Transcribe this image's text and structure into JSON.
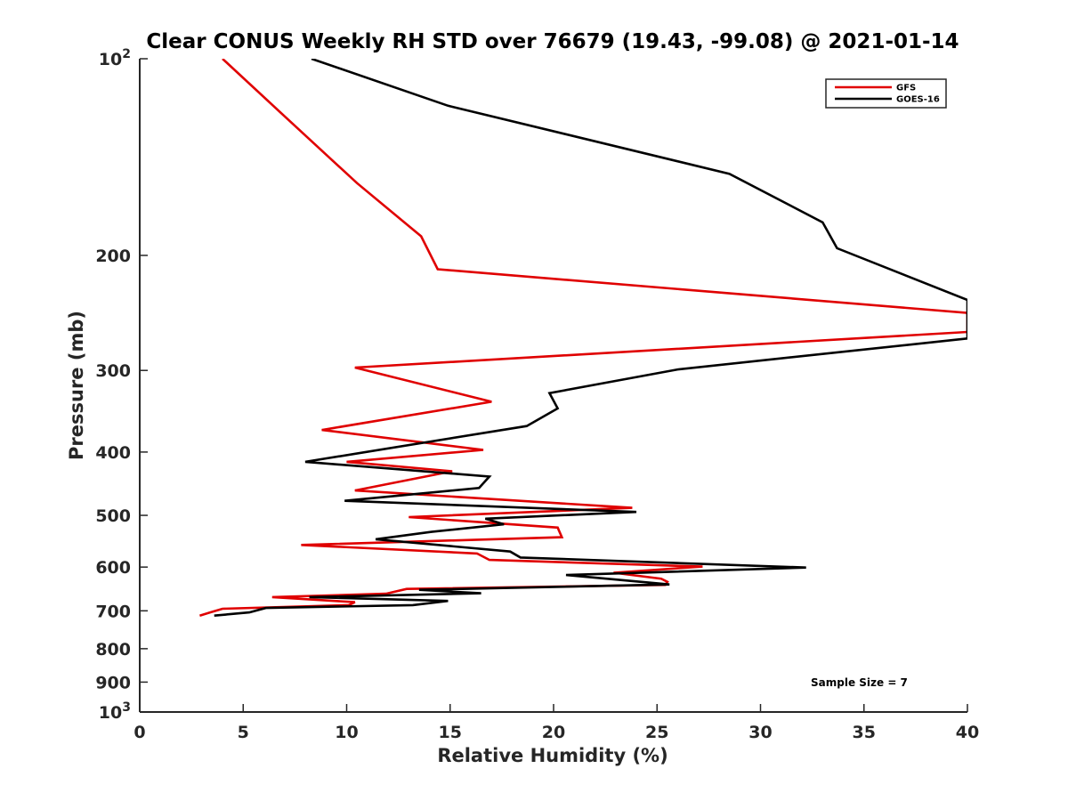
{
  "chart_data": {
    "type": "line",
    "title": "Clear CONUS Weekly RH STD over 76679 (19.43, -99.08) @ 2021-01-14",
    "xlabel": "Relative Humidity (%)",
    "ylabel": "Pressure (mb)",
    "xlim": [
      0,
      40
    ],
    "ylim": [
      100,
      1000
    ],
    "yscale": "log",
    "y_reversed": true,
    "grid": false,
    "legend_position": "top-right",
    "x_ticks": [
      "0",
      "5",
      "10",
      "15",
      "20",
      "25",
      "30",
      "35",
      "40"
    ],
    "y_ticks": [
      {
        "value": 100,
        "base": "10",
        "exp": "2"
      },
      {
        "value": 200,
        "label": "200"
      },
      {
        "value": 300,
        "label": "300"
      },
      {
        "value": 400,
        "label": "400"
      },
      {
        "value": 500,
        "label": "500"
      },
      {
        "value": 600,
        "label": "600"
      },
      {
        "value": 700,
        "label": "700"
      },
      {
        "value": 800,
        "label": "800"
      },
      {
        "value": 900,
        "label": "900"
      },
      {
        "value": 1000,
        "base": "10",
        "exp": "3"
      }
    ],
    "annotation": "Sample Size = 7",
    "series": [
      {
        "name": "GFS",
        "color": "#e00000",
        "points": [
          [
            4.0,
            100
          ],
          [
            7.3,
            125
          ],
          [
            10.5,
            155
          ],
          [
            13.6,
            187
          ],
          [
            14.4,
            210
          ],
          [
            40.0,
            245
          ],
          [
            40.0,
            262
          ],
          [
            10.4,
            297
          ],
          [
            17.0,
            335
          ],
          [
            8.8,
            370
          ],
          [
            16.6,
            397
          ],
          [
            10.0,
            414
          ],
          [
            15.1,
            428
          ],
          [
            10.4,
            458
          ],
          [
            23.8,
            487
          ],
          [
            13.0,
            503
          ],
          [
            20.2,
            522
          ],
          [
            20.4,
            540
          ],
          [
            7.8,
            555
          ],
          [
            16.3,
            572
          ],
          [
            16.9,
            585
          ],
          [
            27.2,
            599
          ],
          [
            22.9,
            612
          ],
          [
            25.2,
            625
          ],
          [
            25.5,
            632
          ],
          [
            25.4,
            639
          ],
          [
            12.9,
            648
          ],
          [
            11.9,
            659
          ],
          [
            6.4,
            667
          ],
          [
            10.4,
            679
          ],
          [
            10.1,
            686
          ],
          [
            4.0,
            695
          ],
          [
            3.4,
            704
          ],
          [
            2.9,
            712
          ]
        ]
      },
      {
        "name": "GOES-16",
        "color": "#000000",
        "points": [
          [
            8.3,
            100
          ],
          [
            14.9,
            118
          ],
          [
            28.5,
            150
          ],
          [
            33.0,
            178
          ],
          [
            33.7,
            195
          ],
          [
            40.0,
            234
          ],
          [
            40.0,
            268
          ],
          [
            26.0,
            299
          ],
          [
            19.8,
            325
          ],
          [
            20.2,
            343
          ],
          [
            18.7,
            365
          ],
          [
            8.0,
            414
          ],
          [
            16.9,
            436
          ],
          [
            16.4,
            454
          ],
          [
            9.9,
            475
          ],
          [
            24.0,
            494
          ],
          [
            16.7,
            506
          ],
          [
            17.6,
            516
          ],
          [
            14.1,
            530
          ],
          [
            11.4,
            544
          ],
          [
            17.9,
            568
          ],
          [
            18.4,
            580
          ],
          [
            32.2,
            601
          ],
          [
            20.6,
            617
          ],
          [
            25.6,
            638
          ],
          [
            13.5,
            650
          ],
          [
            16.5,
            658
          ],
          [
            8.2,
            667
          ],
          [
            14.9,
            676
          ],
          [
            13.2,
            686
          ],
          [
            6.1,
            693
          ],
          [
            5.3,
            704
          ],
          [
            3.6,
            712
          ]
        ]
      }
    ]
  }
}
